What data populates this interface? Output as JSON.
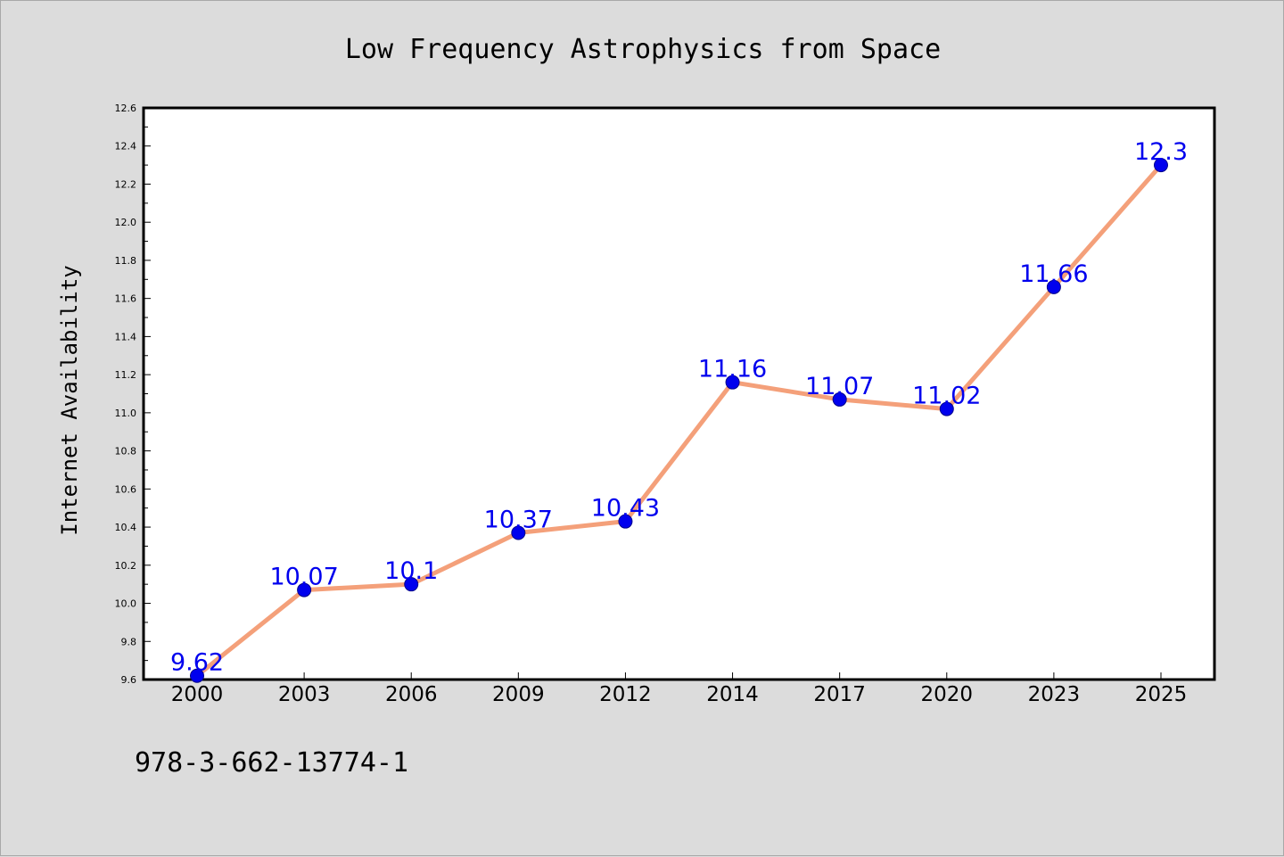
{
  "chart_data": {
    "type": "line",
    "title": "Low Frequency Astrophysics from Space",
    "xlabel": "",
    "ylabel": "Internet Availability",
    "categories": [
      "2000",
      "2003",
      "2006",
      "2009",
      "2012",
      "2014",
      "2017",
      "2020",
      "2023",
      "2025"
    ],
    "series": [
      {
        "values": [
          9.62,
          10.07,
          10.1,
          10.37,
          10.43,
          11.16,
          11.07,
          11.02,
          11.66,
          12.3
        ],
        "labels": [
          "9.62",
          "10.07",
          "10.1",
          "10.37",
          "10.43",
          "11.16",
          "11.07",
          "11.02",
          "11.66",
          "12.3"
        ]
      }
    ],
    "ylim": [
      9.6,
      12.6
    ],
    "yticks": [
      "9.6",
      "9.8",
      "10.0",
      "10.2",
      "10.4",
      "10.6",
      "10.8",
      "11.0",
      "11.2",
      "11.4",
      "11.6",
      "11.8",
      "12.0",
      "12.2",
      "12.4",
      "12.6"
    ],
    "grid": false,
    "legend": "none",
    "colors": {
      "line": "#f4a07a",
      "marker": "#0000ee",
      "marker_edge": "#00008b",
      "data_label": "#0000ee",
      "axis": "#000000",
      "plot_bg": "#ffffff",
      "page_bg": "#dcdcdc"
    }
  },
  "footer": {
    "isbn": "978-3-662-13774-1"
  }
}
